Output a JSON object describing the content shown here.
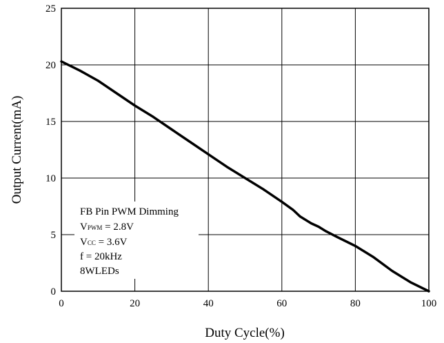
{
  "chart_data": {
    "type": "line",
    "xlabel": "Duty Cycle(%)",
    "ylabel": "Output Current(mA)",
    "xlim": [
      0,
      100
    ],
    "ylim": [
      0,
      25
    ],
    "x_ticks": [
      "0",
      "20",
      "40",
      "60",
      "80",
      "100"
    ],
    "y_ticks": [
      "0",
      "5",
      "10",
      "15",
      "20",
      "25"
    ],
    "grid": true,
    "series": [
      {
        "x": [
          0,
          5,
          10,
          15,
          20,
          25,
          30,
          35,
          40,
          45,
          50,
          55,
          60,
          63,
          65,
          68,
          70,
          72,
          75,
          80,
          85,
          90,
          95,
          100
        ],
        "y": [
          20.3,
          19.5,
          18.6,
          17.5,
          16.4,
          15.4,
          14.3,
          13.2,
          12.1,
          11.0,
          10.0,
          9.0,
          7.9,
          7.2,
          6.6,
          6.0,
          5.7,
          5.3,
          4.8,
          4.0,
          3.0,
          1.8,
          0.8,
          0.0
        ]
      }
    ],
    "annotation": {
      "line1": "FB Pin PWM Dimming",
      "line2_main": "V",
      "line2_sub": "PWM",
      "line2_rest": " = 2.8V",
      "line3_main": "V",
      "line3_sub": "CC",
      "line3_rest": " = 3.6V",
      "line4": "f = 20kHz",
      "line5": "8WLEDs"
    }
  }
}
